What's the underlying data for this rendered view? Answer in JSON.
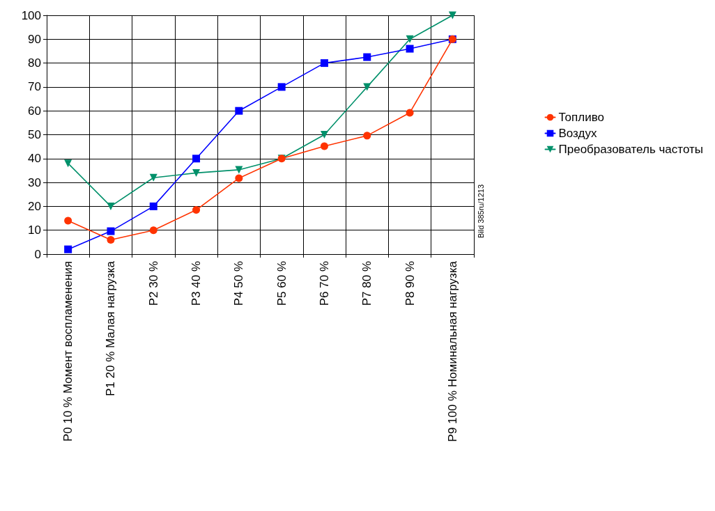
{
  "chart_data": {
    "type": "line",
    "categories": [
      "P0 10 % Момент воспламенения",
      "P1 20 % Малая нагрузка",
      "P2 30 %",
      "P3 40 %",
      "P4 50 %",
      "P5 60 %",
      "P6 70 %",
      "P7 80 %",
      "P8 90 %",
      "P9 100 % Номинальная нагрузка"
    ],
    "series": [
      {
        "name": "Топливо",
        "color": "#ff3300",
        "marker": "circle",
        "values": [
          14,
          6,
          10,
          18.5,
          31.8,
          40,
          45.2,
          49.6,
          59.2,
          90
        ]
      },
      {
        "name": "Воздух",
        "color": "#0000ff",
        "marker": "square",
        "values": [
          2,
          9.6,
          20,
          40,
          60,
          70,
          80,
          82.5,
          86,
          90
        ]
      },
      {
        "name": "Преобразователь частоты",
        "color": "#00906a",
        "marker": "triangle",
        "values": [
          38,
          20,
          32,
          34,
          35.3,
          40,
          50,
          70,
          90,
          100
        ]
      }
    ],
    "ylim": [
      0,
      100
    ],
    "yticks": [
      0,
      10,
      20,
      30,
      40,
      50,
      60,
      70,
      80,
      90,
      100
    ],
    "grid": true,
    "legend": "right",
    "line_style": "solid",
    "annotations": [
      "Bild 385ru/1213"
    ]
  }
}
